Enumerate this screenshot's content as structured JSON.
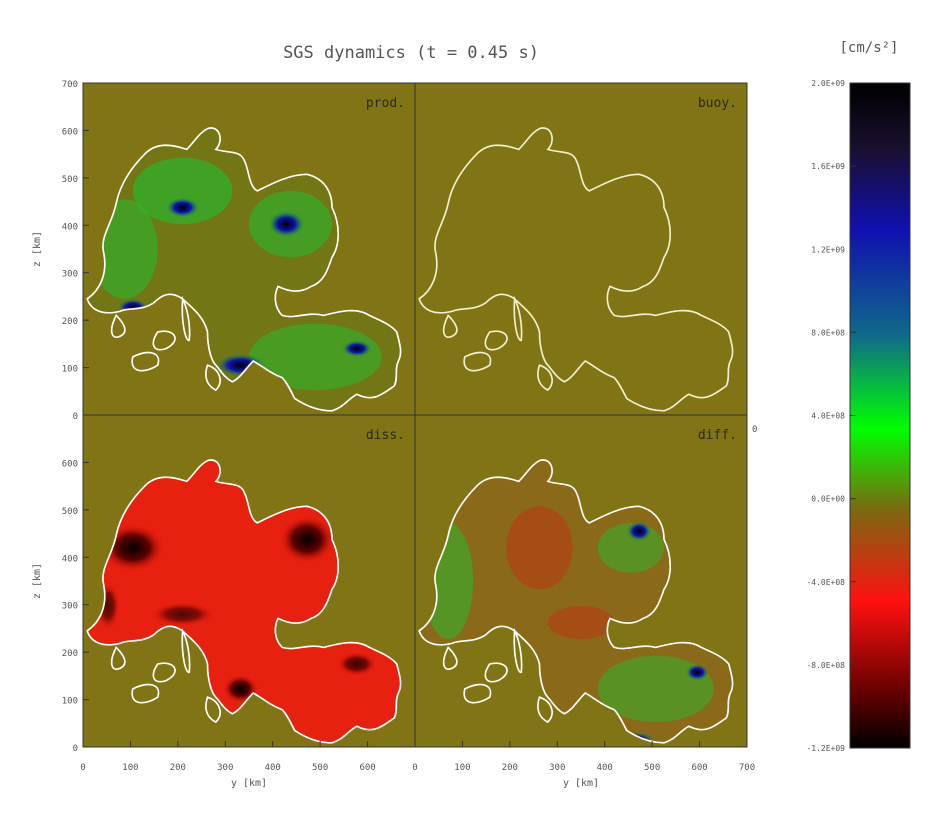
{
  "figure": {
    "title": "SGS dynamics (t = 0.45 s)"
  },
  "chart_data": {
    "type": "heatmap",
    "panels": [
      {
        "label": "prod.",
        "xlim": [
          0,
          700
        ],
        "ylim": [
          0,
          700
        ]
      },
      {
        "label": "buoy.",
        "xlim": [
          0,
          700
        ],
        "ylim": [
          0,
          700
        ]
      },
      {
        "label": "diss.",
        "xlim": [
          0,
          700
        ],
        "ylim": [
          0,
          700
        ]
      },
      {
        "label": "diff.",
        "xlim": [
          0,
          700
        ],
        "ylim": [
          0,
          700
        ]
      }
    ],
    "xlabel": "y [km]",
    "ylabel": "z [km]",
    "x_ticks": [
      "0",
      "100",
      "200",
      "300",
      "400",
      "500",
      "600",
      "700"
    ],
    "y_ticks": [
      "0",
      "100",
      "200",
      "300",
      "400",
      "500",
      "600",
      "700"
    ],
    "right_panel_edge_tick": "0",
    "colorbar": {
      "unit": "[cm/s²]",
      "range": [
        -1200000000.0,
        2000000000.0
      ],
      "ticks": [
        "2.0E+09",
        "1.6E+09",
        "1.2E+09",
        "8.0E+08",
        "4.0E+08",
        "0.0E+00",
        "-4.0E+08",
        "-8.0E+08",
        "-1.2E+09"
      ],
      "colors": [
        "#000000",
        "#20102a",
        "#1010b0",
        "#1060a0",
        "#108050",
        "#00ff00",
        "#7a6a10",
        "#e01010",
        "#000000"
      ]
    },
    "background_color": "#807414",
    "contour_color": "#ffffff"
  }
}
